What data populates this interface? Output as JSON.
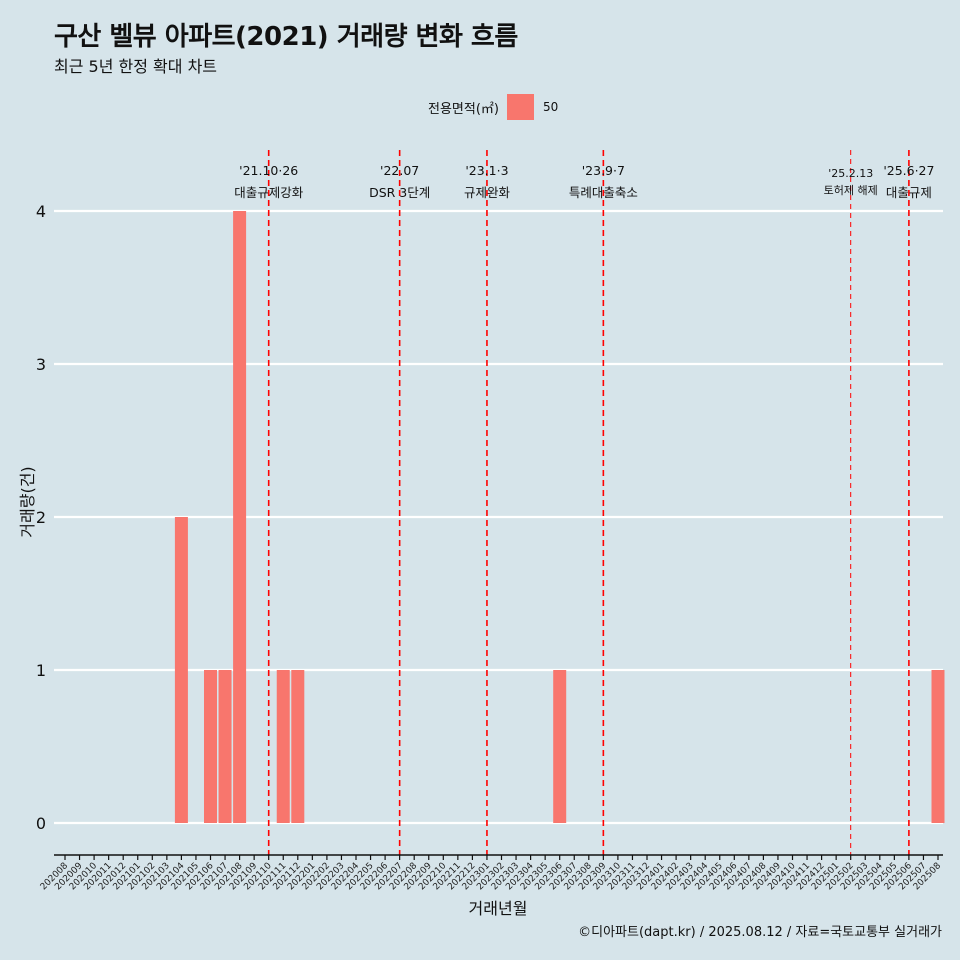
{
  "title": "구산 벨뷰 아파트(2021) 거래량 변화 흐름",
  "subtitle": "최근 5년 한정 확대 차트",
  "legend": {
    "title": "전용면적(㎡)",
    "label": "50"
  },
  "caption": "©디아파트(dapt.kr) / 2025.08.12 / 자료=국토교통부 실거래가",
  "colors": {
    "bar": "#f8766d",
    "background": "#d6e4ea",
    "event_line": "#ff0000",
    "grid": "#ffffff"
  },
  "chart_data": {
    "type": "bar",
    "xlabel": "거래년월",
    "ylabel": "거래량(건)",
    "ylim": [
      0,
      4
    ],
    "yticks": [
      0,
      1,
      2,
      3,
      4
    ],
    "grid": "horizontal",
    "legend_position": "top",
    "categories": [
      "202008",
      "202009",
      "202010",
      "202011",
      "202012",
      "202101",
      "202102",
      "202103",
      "202104",
      "202105",
      "202106",
      "202107",
      "202108",
      "202109",
      "202110",
      "202111",
      "202112",
      "202201",
      "202202",
      "202203",
      "202204",
      "202205",
      "202206",
      "202207",
      "202208",
      "202209",
      "202210",
      "202211",
      "202212",
      "202301",
      "202302",
      "202303",
      "202304",
      "202305",
      "202306",
      "202307",
      "202308",
      "202309",
      "202310",
      "202311",
      "202312",
      "202401",
      "202402",
      "202403",
      "202404",
      "202405",
      "202406",
      "202407",
      "202408",
      "202409",
      "202410",
      "202411",
      "202412",
      "202501",
      "202502",
      "202503",
      "202504",
      "202505",
      "202506",
      "202507",
      "202508"
    ],
    "series": [
      {
        "name": "50",
        "values": [
          0,
          0,
          0,
          0,
          0,
          0,
          0,
          0,
          2,
          0,
          1,
          1,
          4,
          0,
          0,
          1,
          1,
          0,
          0,
          0,
          0,
          0,
          0,
          0,
          0,
          0,
          0,
          0,
          0,
          0,
          0,
          0,
          0,
          0,
          1,
          0,
          0,
          0,
          0,
          0,
          0,
          0,
          0,
          0,
          0,
          0,
          0,
          0,
          0,
          0,
          0,
          0,
          0,
          0,
          0,
          0,
          0,
          0,
          0,
          0,
          1
        ]
      }
    ],
    "events": [
      {
        "at": "202110",
        "label_top": "'21.10·26",
        "label_bottom": "대출규제강화",
        "thin": false
      },
      {
        "at": "202207",
        "label_top": "'22.07",
        "label_bottom": "DSR 3단계",
        "thin": false
      },
      {
        "at": "202301",
        "label_top": "'23.1·3",
        "label_bottom": "규제완화",
        "thin": false
      },
      {
        "at": "202309",
        "label_top": "'23.9·7",
        "label_bottom": "특례대출축소",
        "thin": false
      },
      {
        "at": "202502",
        "label_top": "'25.2.13",
        "label_bottom": "토허제 해제",
        "thin": true
      },
      {
        "at": "202506",
        "label_top": "'25.6·27",
        "label_bottom": "대출규제",
        "thin": false
      }
    ]
  }
}
